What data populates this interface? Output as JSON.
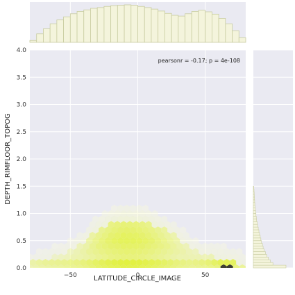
{
  "chart_data": {
    "type": "jointplot-hexbin",
    "xlabel": "LATITUDE_CIRCLE_IMAGE",
    "ylabel": "DEPTH_RIMFLOOR_TOPOG",
    "annotation": "pearsonr = -0.17; p = 4e-108",
    "xlim": [
      -80,
      80
    ],
    "ylim": [
      0,
      4.0
    ],
    "xticks": [
      -50,
      0,
      50
    ],
    "yticks": [
      0.0,
      0.5,
      1.0,
      1.5,
      2.0,
      2.5,
      3.0,
      3.5,
      4.0
    ],
    "xtick_labels": [
      "−50",
      "0",
      "50"
    ],
    "ytick_labels": [
      "0.0",
      "0.5",
      "1.0",
      "1.5",
      "2.0",
      "2.5",
      "3.0",
      "3.5",
      "4.0"
    ],
    "grid": true,
    "colors": {
      "background": "#EAEAF2",
      "hex_low": "#FAFCE2",
      "hex_high": "#DDF018",
      "hex_dark": "#111100",
      "hist_fill": "#F4F4DC",
      "hist_edge": "#C8CCA0"
    },
    "marginal_x": {
      "bin_edges": [
        -80,
        -75,
        -70,
        -65,
        -60,
        -55,
        -50,
        -45,
        -40,
        -35,
        -30,
        -25,
        -20,
        -15,
        -10,
        -5,
        0,
        5,
        10,
        15,
        20,
        25,
        30,
        35,
        40,
        45,
        50,
        55,
        60,
        65,
        70,
        75,
        80
      ],
      "counts": [
        0.05,
        0.22,
        0.35,
        0.48,
        0.58,
        0.66,
        0.74,
        0.8,
        0.84,
        0.88,
        0.9,
        0.93,
        0.95,
        0.96,
        0.97,
        0.96,
        0.93,
        0.9,
        0.86,
        0.81,
        0.75,
        0.7,
        0.68,
        0.74,
        0.8,
        0.83,
        0.79,
        0.73,
        0.62,
        0.48,
        0.3,
        0.12
      ]
    },
    "marginal_y": {
      "bin_edges": [
        0,
        0.05,
        0.1,
        0.15,
        0.2,
        0.25,
        0.3,
        0.35,
        0.4,
        0.45,
        0.5,
        0.55,
        0.6,
        0.65,
        0.7,
        0.75,
        0.8,
        0.85,
        0.9,
        0.95,
        1.0,
        1.05,
        1.1,
        1.15,
        1.2,
        1.25,
        1.3,
        1.35,
        1.4,
        1.45,
        1.5
      ],
      "counts": [
        1.0,
        0.6,
        0.52,
        0.46,
        0.41,
        0.37,
        0.33,
        0.3,
        0.28,
        0.25,
        0.23,
        0.21,
        0.19,
        0.17,
        0.15,
        0.13,
        0.12,
        0.1,
        0.09,
        0.08,
        0.07,
        0.06,
        0.05,
        0.045,
        0.04,
        0.035,
        0.03,
        0.025,
        0.02,
        0.015
      ]
    },
    "density_profile": {
      "x": [
        -80,
        -70,
        -60,
        -50,
        -40,
        -30,
        -20,
        -10,
        0,
        10,
        20,
        30,
        40,
        50,
        60,
        70,
        80
      ],
      "upper_y": [
        0.15,
        0.18,
        0.22,
        0.3,
        0.45,
        0.7,
        0.82,
        0.88,
        0.85,
        0.8,
        0.7,
        0.55,
        0.35,
        0.22,
        0.18,
        0.12,
        0.08
      ],
      "intensity": [
        0.2,
        0.3,
        0.35,
        0.4,
        0.5,
        0.65,
        0.75,
        0.8,
        0.78,
        0.72,
        0.62,
        0.5,
        0.42,
        0.45,
        0.55,
        0.6,
        0.3
      ]
    }
  }
}
